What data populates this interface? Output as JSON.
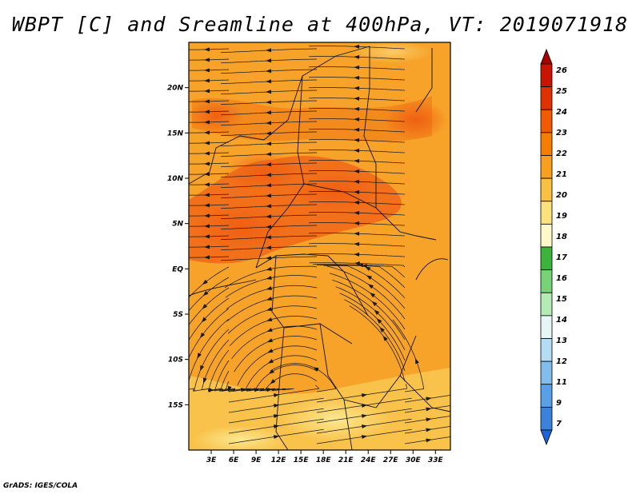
{
  "title": "WBPT [C] and Sreamline at 400hPa, VT: 2019071918",
  "credit": "GrADS: IGES/COLA",
  "map": {
    "lat_range": [
      -20,
      25
    ],
    "lon_range": [
      0,
      35
    ],
    "lat_ticks": [
      "20N",
      "15N",
      "10N",
      "5N",
      "EQ",
      "5S",
      "10S",
      "15S"
    ],
    "lon_ticks": [
      "3E",
      "6E",
      "9E",
      "12E",
      "15E",
      "18E",
      "21E",
      "24E",
      "27E",
      "30E",
      "33E"
    ]
  },
  "colorbar": {
    "labels": [
      "26",
      "25",
      "24",
      "23",
      "22",
      "21",
      "20",
      "19",
      "18",
      "17",
      "16",
      "15",
      "14",
      "13",
      "12",
      "11",
      "9",
      "7"
    ],
    "colors": [
      "#a50000",
      "#c81400",
      "#e03200",
      "#f05a00",
      "#f57d00",
      "#f7a020",
      "#f9c044",
      "#fbe07e",
      "#fff8c8",
      "#3cb43c",
      "#78d278",
      "#b4ebb4",
      "#e6f5f5",
      "#b4dcf5",
      "#82beeb",
      "#5aa0e6",
      "#3c82dc",
      "#1e64d2"
    ]
  }
}
